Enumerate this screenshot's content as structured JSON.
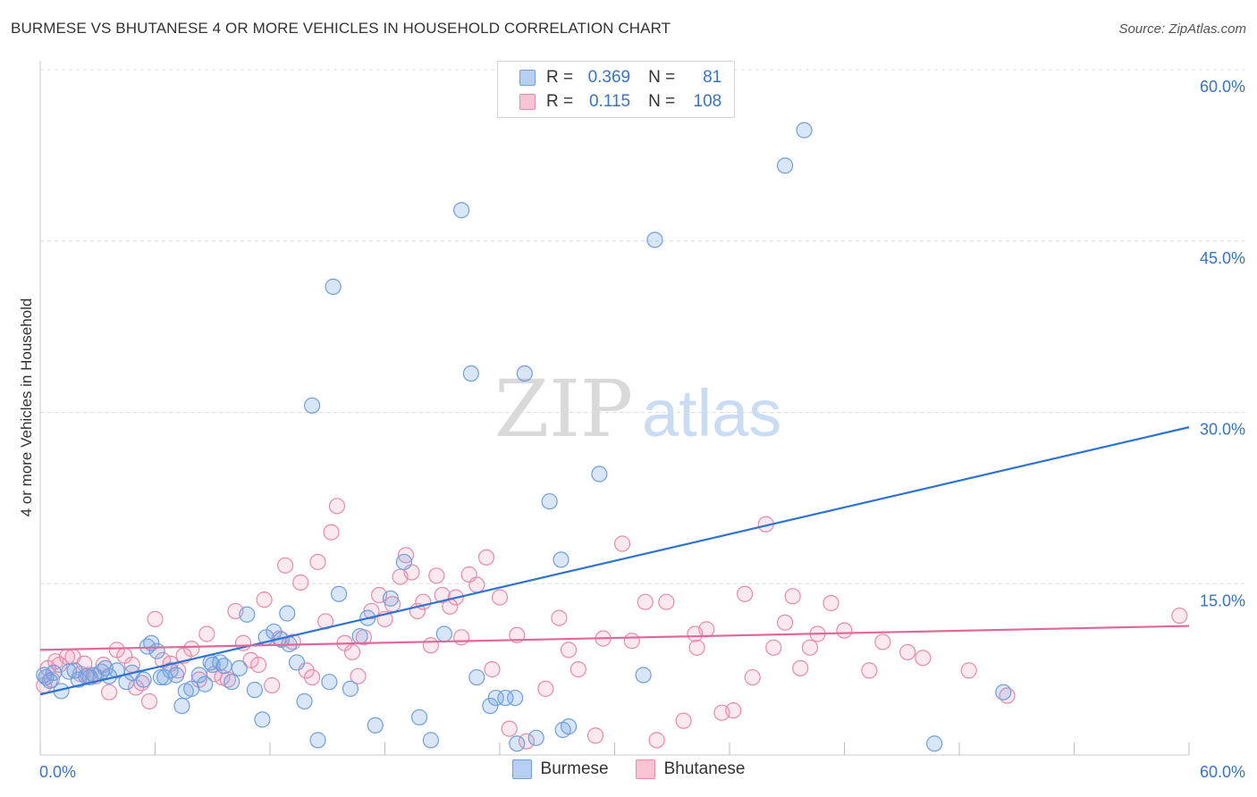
{
  "title": "BURMESE VS BHUTANESE 4 OR MORE VEHICLES IN HOUSEHOLD CORRELATION CHART",
  "source": "Source: ZipAtlas.com",
  "watermark": {
    "zip": "ZIP",
    "atlas": "atlas"
  },
  "stats": [
    {
      "r_label": "R =",
      "r_value": "0.369",
      "n_label": "N =",
      "n_value": "81",
      "color": "#5b8fd6"
    },
    {
      "r_label": "R =",
      "r_value": "0.115",
      "n_label": "N =",
      "n_value": "108",
      "color": "#e77fa3"
    }
  ],
  "legend": [
    "Burmese",
    "Bhutanese"
  ],
  "chart_data": {
    "type": "scatter",
    "xlabel": "",
    "ylabel": "4 or more Vehicles in Household",
    "xlim": [
      0,
      60
    ],
    "ylim": [
      0,
      60
    ],
    "x_tick_labels": [
      "0.0%",
      "60.0%"
    ],
    "y_tick_labels": [
      "15.0%",
      "30.0%",
      "45.0%",
      "60.0%"
    ],
    "y_ticks": [
      15,
      30,
      45,
      60
    ],
    "grid": "horizontal dashed",
    "legend_position": "bottom-center",
    "series": [
      {
        "name": "Burmese",
        "color": "#5b8fd6",
        "trend": [
          [
            0,
            5.3
          ],
          [
            60,
            28.7
          ]
        ],
        "points": [
          [
            0.3,
            6.8
          ],
          [
            0.5,
            6.5
          ],
          [
            0.7,
            7.2
          ],
          [
            1.1,
            5.6
          ],
          [
            1.5,
            7.3
          ],
          [
            2.0,
            6.6
          ],
          [
            2.4,
            6.9
          ],
          [
            2.8,
            7.0
          ],
          [
            3.2,
            7.3
          ],
          [
            3.4,
            7.6
          ],
          [
            3.6,
            6.9
          ],
          [
            4.0,
            7.4
          ],
          [
            4.5,
            6.4
          ],
          [
            4.8,
            7.2
          ],
          [
            5.4,
            6.6
          ],
          [
            5.6,
            9.5
          ],
          [
            5.8,
            9.8
          ],
          [
            6.1,
            9.1
          ],
          [
            6.3,
            6.8
          ],
          [
            6.5,
            6.8
          ],
          [
            6.8,
            7.4
          ],
          [
            7.1,
            7.0
          ],
          [
            7.4,
            4.3
          ],
          [
            7.6,
            5.6
          ],
          [
            7.9,
            5.8
          ],
          [
            8.3,
            7.0
          ],
          [
            8.6,
            6.2
          ],
          [
            9.0,
            7.9
          ],
          [
            9.4,
            8.1
          ],
          [
            9.6,
            7.8
          ],
          [
            10.0,
            6.4
          ],
          [
            10.4,
            7.6
          ],
          [
            10.8,
            12.3
          ],
          [
            11.2,
            5.7
          ],
          [
            11.6,
            3.1
          ],
          [
            11.8,
            10.3
          ],
          [
            12.2,
            10.8
          ],
          [
            12.6,
            10.1
          ],
          [
            13.0,
            9.7
          ],
          [
            13.4,
            8.1
          ],
          [
            13.8,
            4.7
          ],
          [
            14.2,
            30.6
          ],
          [
            14.5,
            1.3
          ],
          [
            15.1,
            6.4
          ],
          [
            15.3,
            41.0
          ],
          [
            15.6,
            14.1
          ],
          [
            16.2,
            5.8
          ],
          [
            16.7,
            10.4
          ],
          [
            17.1,
            12.0
          ],
          [
            17.5,
            2.6
          ],
          [
            18.3,
            13.7
          ],
          [
            19.0,
            16.9
          ],
          [
            19.8,
            3.3
          ],
          [
            20.4,
            1.3
          ],
          [
            21.1,
            10.6
          ],
          [
            22.0,
            47.7
          ],
          [
            22.5,
            33.4
          ],
          [
            22.8,
            6.8
          ],
          [
            23.5,
            4.3
          ],
          [
            23.8,
            5.0
          ],
          [
            24.3,
            5.0
          ],
          [
            24.8,
            5.0
          ],
          [
            24.9,
            1.0
          ],
          [
            25.3,
            33.4
          ],
          [
            25.9,
            1.5
          ],
          [
            26.6,
            22.2
          ],
          [
            27.2,
            17.1
          ],
          [
            27.3,
            2.2
          ],
          [
            27.6,
            2.5
          ],
          [
            29.2,
            24.6
          ],
          [
            31.5,
            7.0
          ],
          [
            32.1,
            45.1
          ],
          [
            38.9,
            51.6
          ],
          [
            39.9,
            54.7
          ],
          [
            46.7,
            1.0
          ],
          [
            50.3,
            5.5
          ],
          [
            0.2,
            7.0
          ],
          [
            1.8,
            7.4
          ],
          [
            2.6,
            6.8
          ],
          [
            8.9,
            8.1
          ],
          [
            12.9,
            12.4
          ]
        ]
      },
      {
        "name": "Bhutanese",
        "color": "#e77fa3",
        "trend": [
          [
            0,
            9.2
          ],
          [
            60,
            11.3
          ]
        ],
        "points": [
          [
            0.2,
            6.1
          ],
          [
            0.4,
            7.6
          ],
          [
            0.6,
            6.6
          ],
          [
            0.8,
            8.2
          ],
          [
            1.0,
            7.9
          ],
          [
            1.4,
            8.6
          ],
          [
            1.7,
            8.6
          ],
          [
            2.1,
            7.1
          ],
          [
            2.5,
            7.0
          ],
          [
            2.9,
            6.9
          ],
          [
            3.3,
            7.9
          ],
          [
            3.6,
            5.5
          ],
          [
            4.0,
            9.2
          ],
          [
            4.4,
            8.7
          ],
          [
            4.8,
            7.9
          ],
          [
            5.0,
            5.9
          ],
          [
            5.3,
            6.3
          ],
          [
            5.7,
            4.7
          ],
          [
            6.0,
            11.9
          ],
          [
            6.4,
            8.3
          ],
          [
            6.8,
            8.0
          ],
          [
            7.2,
            7.4
          ],
          [
            7.5,
            8.7
          ],
          [
            7.9,
            9.3
          ],
          [
            8.3,
            6.6
          ],
          [
            8.7,
            10.6
          ],
          [
            9.1,
            7.1
          ],
          [
            9.5,
            6.8
          ],
          [
            9.8,
            6.6
          ],
          [
            10.2,
            12.6
          ],
          [
            10.6,
            9.8
          ],
          [
            11.0,
            8.3
          ],
          [
            11.4,
            7.9
          ],
          [
            11.7,
            13.6
          ],
          [
            12.1,
            6.1
          ],
          [
            12.5,
            10.2
          ],
          [
            12.8,
            16.6
          ],
          [
            13.2,
            9.9
          ],
          [
            13.6,
            15.1
          ],
          [
            13.9,
            7.4
          ],
          [
            14.2,
            6.8
          ],
          [
            14.5,
            16.9
          ],
          [
            14.9,
            11.7
          ],
          [
            15.2,
            19.5
          ],
          [
            15.5,
            21.8
          ],
          [
            15.9,
            9.8
          ],
          [
            16.3,
            9.0
          ],
          [
            16.6,
            6.9
          ],
          [
            16.9,
            10.3
          ],
          [
            17.3,
            12.6
          ],
          [
            17.7,
            14.0
          ],
          [
            18.0,
            11.9
          ],
          [
            18.4,
            13.2
          ],
          [
            18.8,
            15.6
          ],
          [
            19.1,
            17.5
          ],
          [
            19.4,
            16.0
          ],
          [
            19.7,
            12.6
          ],
          [
            20.0,
            13.4
          ],
          [
            20.4,
            9.6
          ],
          [
            20.7,
            15.7
          ],
          [
            21.0,
            14.0
          ],
          [
            21.4,
            13.0
          ],
          [
            21.7,
            13.8
          ],
          [
            22.0,
            10.3
          ],
          [
            22.4,
            15.8
          ],
          [
            22.8,
            14.9
          ],
          [
            23.3,
            17.3
          ],
          [
            23.6,
            7.5
          ],
          [
            24.0,
            13.8
          ],
          [
            24.5,
            2.3
          ],
          [
            24.9,
            10.5
          ],
          [
            25.4,
            1.2
          ],
          [
            26.4,
            5.8
          ],
          [
            27.1,
            12.0
          ],
          [
            27.6,
            9.2
          ],
          [
            28.1,
            7.5
          ],
          [
            29.0,
            1.7
          ],
          [
            29.4,
            10.2
          ],
          [
            30.4,
            18.5
          ],
          [
            30.9,
            10.0
          ],
          [
            31.6,
            13.4
          ],
          [
            32.2,
            1.3
          ],
          [
            32.7,
            13.4
          ],
          [
            33.6,
            3.0
          ],
          [
            34.3,
            9.4
          ],
          [
            34.8,
            11.0
          ],
          [
            35.6,
            3.7
          ],
          [
            36.2,
            3.9
          ],
          [
            36.8,
            14.1
          ],
          [
            37.2,
            6.8
          ],
          [
            37.9,
            20.2
          ],
          [
            38.3,
            9.4
          ],
          [
            38.9,
            11.6
          ],
          [
            39.3,
            13.9
          ],
          [
            39.7,
            7.6
          ],
          [
            40.2,
            9.4
          ],
          [
            40.6,
            10.6
          ],
          [
            41.3,
            13.3
          ],
          [
            42.0,
            10.9
          ],
          [
            43.3,
            7.4
          ],
          [
            44.0,
            9.9
          ],
          [
            45.3,
            9.0
          ],
          [
            46.1,
            8.5
          ],
          [
            48.5,
            7.4
          ],
          [
            50.5,
            5.2
          ],
          [
            59.5,
            12.2
          ],
          [
            34.2,
            10.6
          ],
          [
            2.3,
            8.0
          ]
        ]
      }
    ]
  }
}
